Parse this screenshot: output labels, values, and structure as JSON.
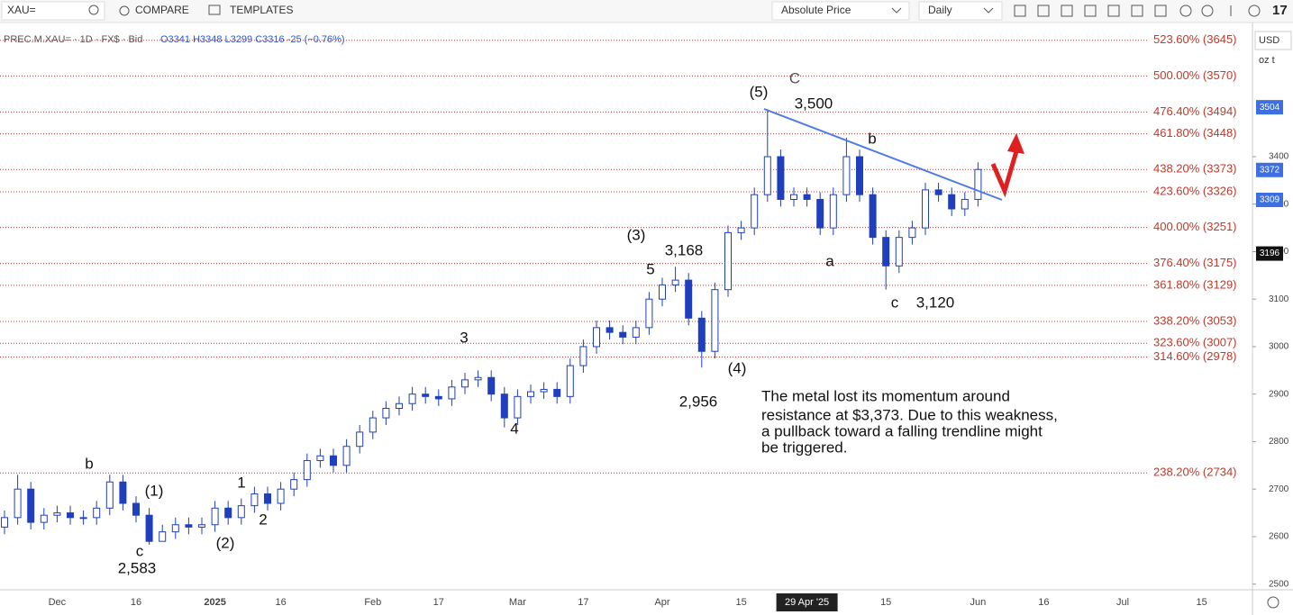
{
  "toolbar": {
    "symbol": "XAU=",
    "compare": "COMPARE",
    "templates": "TEMPLATES",
    "price_mode": "Absolute Price",
    "interval": "Daily"
  },
  "chart_data": {
    "type": "candlestick",
    "info": "PREC.M.XAU= · 1D · FX$ · Bid",
    "ohlc_text": "O3341 H3348 L3299 C3316 -25 (−0.76%)",
    "currency": "USD",
    "unit": "oz t",
    "up_color": "#ffffff",
    "down_color": "#1f3fbf",
    "border_color": "#1f3fbf",
    "open": [
      2620,
      2640,
      2700,
      2630,
      2645,
      2650,
      2640,
      2640,
      2660,
      2715,
      2670,
      2645,
      2590,
      2610,
      2625,
      2620,
      2625,
      2660,
      2640,
      2665,
      2690,
      2670,
      2700,
      2720,
      2760,
      2770,
      2750,
      2790,
      2820,
      2850,
      2870,
      2880,
      2900,
      2895,
      2890,
      2915,
      2930,
      2935,
      2900,
      2850,
      2895,
      2905,
      2910,
      2895,
      2960,
      3000,
      3040,
      3030,
      3020,
      3040,
      3100,
      3130,
      3140,
      3060,
      2990,
      3120,
      3240,
      3250,
      3320,
      3400,
      3310,
      3320,
      3310,
      3250,
      3320,
      3400,
      3320,
      3230,
      3170,
      3230,
      3250,
      3330,
      3320,
      3290,
      3310
    ],
    "high": [
      2655,
      2730,
      2715,
      2660,
      2665,
      2665,
      2655,
      2675,
      2730,
      2730,
      2685,
      2660,
      2625,
      2640,
      2640,
      2640,
      2675,
      2675,
      2680,
      2705,
      2705,
      2715,
      2735,
      2775,
      2785,
      2785,
      2805,
      2835,
      2865,
      2885,
      2895,
      2915,
      2915,
      2910,
      2930,
      2945,
      2950,
      2950,
      2915,
      2910,
      2920,
      2925,
      2925,
      2975,
      3015,
      3055,
      3055,
      3045,
      3055,
      3115,
      3145,
      3168,
      3155,
      3075,
      3135,
      3255,
      3265,
      3335,
      3500,
      3415,
      3335,
      3335,
      3325,
      3335,
      3440,
      3415,
      3335,
      3245,
      3245,
      3265,
      3345,
      3345,
      3335,
      3325,
      3388
    ],
    "low": [
      2605,
      2625,
      2615,
      2615,
      2630,
      2625,
      2625,
      2625,
      2645,
      2655,
      2630,
      2583,
      2595,
      2595,
      2605,
      2605,
      2610,
      2625,
      2625,
      2650,
      2655,
      2655,
      2685,
      2705,
      2745,
      2735,
      2735,
      2775,
      2805,
      2835,
      2855,
      2865,
      2880,
      2875,
      2875,
      2900,
      2915,
      2885,
      2830,
      2835,
      2880,
      2890,
      2880,
      2880,
      2945,
      2985,
      3015,
      3005,
      3005,
      3025,
      3085,
      3115,
      3045,
      2956,
      2975,
      3105,
      3225,
      3235,
      3305,
      3295,
      3295,
      3295,
      3235,
      3235,
      3305,
      3305,
      3215,
      3120,
      3155,
      3215,
      3235,
      3305,
      3275,
      3275,
      3295
    ],
    "close": [
      2640,
      2700,
      2630,
      2645,
      2650,
      2640,
      2640,
      2660,
      2715,
      2670,
      2645,
      2590,
      2610,
      2625,
      2620,
      2625,
      2660,
      2640,
      2665,
      2690,
      2670,
      2700,
      2720,
      2760,
      2770,
      2750,
      2790,
      2820,
      2850,
      2870,
      2880,
      2900,
      2895,
      2890,
      2915,
      2930,
      2935,
      2900,
      2850,
      2895,
      2905,
      2910,
      2895,
      2960,
      3000,
      3040,
      3030,
      3020,
      3040,
      3100,
      3130,
      3140,
      3060,
      2990,
      3120,
      3240,
      3250,
      3320,
      3400,
      3310,
      3320,
      3310,
      3250,
      3320,
      3400,
      3320,
      3230,
      3170,
      3230,
      3250,
      3330,
      3320,
      3290,
      3310,
      3373
    ],
    "x_labels": [
      {
        "index": 4,
        "label": "Dec"
      },
      {
        "index": 10,
        "label": "16"
      },
      {
        "index": 16,
        "label": "2025"
      },
      {
        "index": 21,
        "label": "16"
      },
      {
        "index": 28,
        "label": "Feb"
      },
      {
        "index": 33,
        "label": "17"
      },
      {
        "index": 39,
        "label": "Mar"
      },
      {
        "index": 44,
        "label": "17"
      },
      {
        "index": 50,
        "label": "Apr"
      },
      {
        "index": 56,
        "label": "15"
      },
      {
        "index": 61,
        "label": "29 Apr '25"
      },
      {
        "index": 67,
        "label": "15"
      },
      {
        "index": 74,
        "label": "Jun"
      },
      {
        "index": 79,
        "label": "16"
      },
      {
        "index": 85,
        "label": "Jul"
      },
      {
        "index": 91,
        "label": "15"
      }
    ],
    "highlighted_x_label": 10,
    "ylim": [
      2488,
      3673
    ],
    "yticks": [
      2500,
      2600,
      2700,
      2800,
      2900,
      3000,
      3100,
      3200,
      3300,
      3400
    ],
    "fib_levels": [
      {
        "value": 3645,
        "label": "523.60% (3645)"
      },
      {
        "value": 3570,
        "label": "500.00% (3570)"
      },
      {
        "value": 3494,
        "label": "476.40% (3494)"
      },
      {
        "value": 3448,
        "label": "461.80% (3448)"
      },
      {
        "value": 3373,
        "label": "438.20% (3373)"
      },
      {
        "value": 3326,
        "label": "423.60% (3326)"
      },
      {
        "value": 3251,
        "label": "400.00% (3251)"
      },
      {
        "value": 3175,
        "label": "376.40% (3175)"
      },
      {
        "value": 3129,
        "label": "361.80% (3129)"
      },
      {
        "value": 3053,
        "label": "338.20% (3053)"
      },
      {
        "value": 3007,
        "label": "323.60% (3007)"
      },
      {
        "value": 2978,
        "label": "314.60% (2978)"
      },
      {
        "value": 2734,
        "label": "238.20% (2734)"
      }
    ],
    "fib_color": "#c0392b",
    "price_tags": [
      {
        "value": 3504,
        "color": "#3d6fe0"
      },
      {
        "value": 3372,
        "color": "#3d6fe0"
      },
      {
        "value": 3309,
        "color": "#3d6fe0"
      },
      {
        "value": 3196,
        "color": "#111111"
      }
    ],
    "annotations": [
      "(5)",
      "C",
      "3,500",
      "b",
      "a",
      "c",
      "3,120",
      "(3)",
      "3,168",
      "5",
      "3",
      "(4)",
      "2,956",
      "4",
      "b",
      "(1)",
      "1",
      "2",
      "(2)",
      "c",
      "2,583"
    ],
    "commentary": [
      "The metal lost its momentum around",
      "resistance at $3,373. Due to this weakness,",
      "a pullback toward a falling trendline might",
      "be triggered."
    ]
  }
}
